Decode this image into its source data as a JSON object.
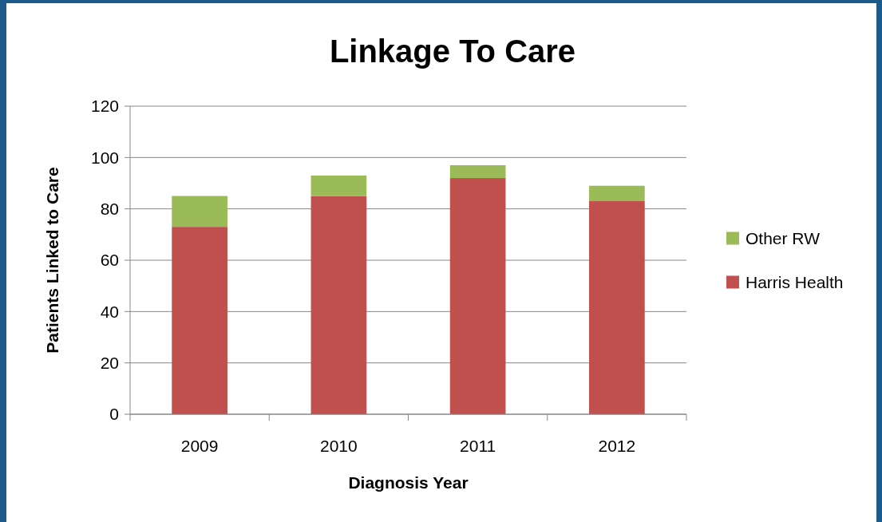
{
  "chart_data": {
    "type": "bar",
    "title": "Linkage To Care",
    "xlabel": "Diagnosis Year",
    "ylabel": "Patients Linked to Care",
    "categories": [
      "2009",
      "2010",
      "2011",
      "2012"
    ],
    "series": [
      {
        "name": "Harris Health",
        "color": "#c0504d",
        "values": [
          73,
          85,
          92,
          83
        ]
      },
      {
        "name": "Other RW",
        "color": "#9bbb59",
        "values": [
          12,
          8,
          5,
          6
        ]
      }
    ],
    "stacked": true,
    "ylim": [
      0,
      120
    ],
    "yticks": [
      0,
      20,
      40,
      60,
      80,
      100,
      120
    ],
    "grid": "y",
    "legend": "right"
  }
}
